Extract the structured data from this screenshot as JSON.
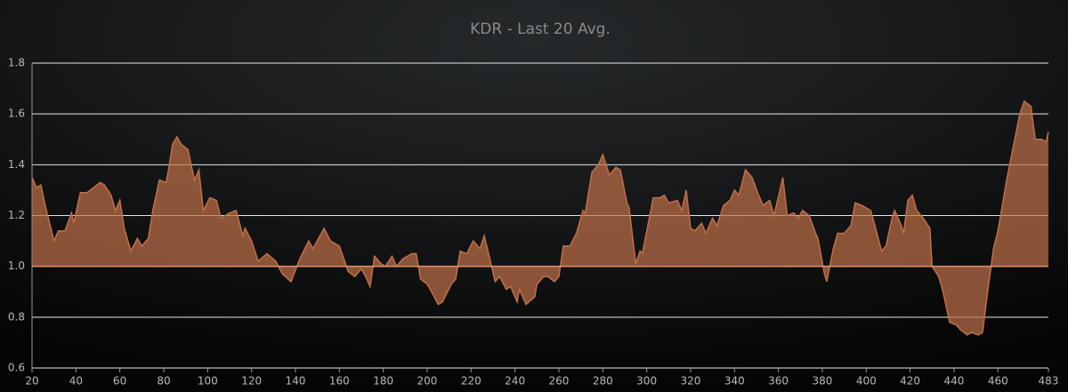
{
  "chart_data": {
    "type": "area",
    "title": "KDR - Last 20 Avg.",
    "x": [
      20,
      22,
      24,
      26,
      30,
      32,
      35,
      38,
      39,
      42,
      45,
      48,
      51,
      53,
      56,
      58,
      60,
      62,
      65,
      68,
      70,
      73,
      75,
      78,
      81,
      82,
      84,
      86,
      88,
      91,
      94,
      96,
      98,
      101,
      104,
      106,
      110,
      113,
      116,
      117,
      120,
      123,
      127,
      131,
      134,
      138,
      142,
      146,
      148,
      153,
      156,
      160,
      164,
      167,
      170,
      172,
      174,
      176,
      179,
      181,
      184,
      186,
      189,
      193,
      195,
      197,
      200,
      202,
      205,
      207,
      211,
      213,
      215,
      218,
      221,
      224,
      226,
      228,
      231,
      233,
      236,
      238,
      241,
      242,
      245,
      249,
      250,
      253,
      255,
      258,
      260,
      262,
      265,
      268,
      271,
      272,
      275,
      278,
      280,
      283,
      286,
      288,
      291,
      292,
      295,
      297,
      298,
      303,
      306,
      308,
      310,
      314,
      316,
      318,
      320,
      322,
      325,
      327,
      330,
      332,
      335,
      338,
      340,
      342,
      345,
      348,
      351,
      353,
      356,
      358,
      362,
      364,
      367,
      369,
      371,
      374,
      377,
      378,
      381,
      382,
      385,
      387,
      390,
      393,
      395,
      398,
      402,
      404,
      407,
      409,
      412,
      413,
      416,
      417,
      419,
      421,
      423,
      426,
      429,
      430,
      433,
      435,
      438,
      441,
      443,
      446,
      448,
      451,
      453,
      455,
      458,
      460,
      464,
      467,
      470,
      472,
      475,
      477,
      480,
      482,
      483
    ],
    "values": [
      1.35,
      1.31,
      1.32,
      1.24,
      1.1,
      1.14,
      1.14,
      1.21,
      1.17,
      1.29,
      1.29,
      1.31,
      1.33,
      1.32,
      1.28,
      1.22,
      1.26,
      1.15,
      1.06,
      1.11,
      1.08,
      1.11,
      1.22,
      1.34,
      1.33,
      1.37,
      1.48,
      1.51,
      1.48,
      1.46,
      1.34,
      1.38,
      1.22,
      1.27,
      1.26,
      1.19,
      1.21,
      1.22,
      1.12,
      1.15,
      1.1,
      1.02,
      1.05,
      1.02,
      0.97,
      0.94,
      1.03,
      1.1,
      1.07,
      1.15,
      1.1,
      1.08,
      0.98,
      0.96,
      0.99,
      0.96,
      0.92,
      1.04,
      1.01,
      1.0,
      1.04,
      1.0,
      1.03,
      1.05,
      1.05,
      0.95,
      0.93,
      0.9,
      0.85,
      0.86,
      0.93,
      0.95,
      1.06,
      1.05,
      1.1,
      1.07,
      1.12,
      1.05,
      0.94,
      0.96,
      0.91,
      0.92,
      0.86,
      0.91,
      0.85,
      0.88,
      0.93,
      0.96,
      0.96,
      0.94,
      0.96,
      1.08,
      1.08,
      1.13,
      1.22,
      1.21,
      1.37,
      1.4,
      1.44,
      1.36,
      1.39,
      1.38,
      1.25,
      1.23,
      1.01,
      1.06,
      1.05,
      1.27,
      1.27,
      1.28,
      1.25,
      1.26,
      1.22,
      1.3,
      1.15,
      1.14,
      1.17,
      1.13,
      1.19,
      1.16,
      1.24,
      1.26,
      1.3,
      1.28,
      1.38,
      1.35,
      1.28,
      1.24,
      1.26,
      1.2,
      1.35,
      1.2,
      1.21,
      1.19,
      1.22,
      1.2,
      1.13,
      1.11,
      0.97,
      0.94,
      1.07,
      1.13,
      1.13,
      1.16,
      1.25,
      1.24,
      1.22,
      1.16,
      1.06,
      1.08,
      1.2,
      1.22,
      1.16,
      1.13,
      1.26,
      1.28,
      1.22,
      1.19,
      1.15,
      1.0,
      0.96,
      0.9,
      0.78,
      0.77,
      0.75,
      0.73,
      0.74,
      0.73,
      0.74,
      0.88,
      1.07,
      1.14,
      1.34,
      1.47,
      1.6,
      1.65,
      1.63,
      1.5,
      1.5,
      1.49,
      1.53
    ],
    "baseline": 1,
    "color": "#c07048",
    "xlim": [
      20,
      483
    ],
    "xticks": [
      20,
      40,
      60,
      80,
      100,
      120,
      140,
      160,
      180,
      200,
      220,
      240,
      260,
      280,
      300,
      320,
      340,
      360,
      380,
      400,
      420,
      440,
      460,
      483
    ],
    "ylim": [
      0.6,
      1.8
    ],
    "yticks": [
      0.6,
      0.8,
      {
        "value": 1,
        "label": "1.0"
      },
      1.2,
      1.4,
      1.6,
      1.8
    ],
    "grid": true
  }
}
